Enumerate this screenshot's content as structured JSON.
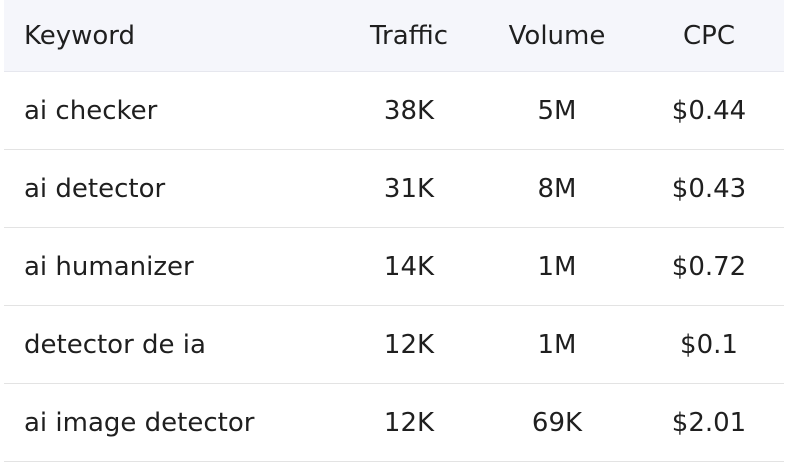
{
  "table": {
    "headers": {
      "keyword": "Keyword",
      "traffic": "Traffic",
      "volume": "Volume",
      "cpc": "CPC"
    },
    "rows": [
      {
        "keyword": "ai checker",
        "traffic": "38K",
        "volume": "5M",
        "cpc": "$0.44"
      },
      {
        "keyword": "ai detector",
        "traffic": "31K",
        "volume": "8M",
        "cpc": "$0.43"
      },
      {
        "keyword": "ai humanizer",
        "traffic": "14K",
        "volume": "1M",
        "cpc": "$0.72"
      },
      {
        "keyword": "detector de ia",
        "traffic": "12K",
        "volume": "1M",
        "cpc": "$0.1"
      },
      {
        "keyword": "ai image detector",
        "traffic": "12K",
        "volume": "69K",
        "cpc": "$2.01"
      }
    ]
  },
  "colors": {
    "header_bg": "#f5f6fb",
    "row_divider": "#e3e3e3",
    "text": "#1f1f1f"
  }
}
